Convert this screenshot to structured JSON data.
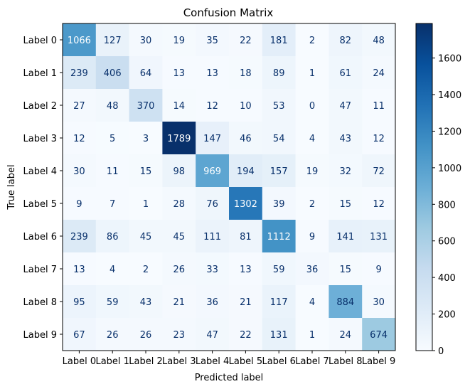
{
  "chart_data": {
    "type": "heatmap",
    "title": "Confusion Matrix",
    "xlabel": "Predicted label",
    "ylabel": "True label",
    "x_categories": [
      "Label 0",
      "Label 1",
      "Label 2",
      "Label 3",
      "Label 4",
      "Label 5",
      "Label 6",
      "Label 7",
      "Label 8",
      "Label 9"
    ],
    "y_categories": [
      "Label 0",
      "Label 1",
      "Label 2",
      "Label 3",
      "Label 4",
      "Label 5",
      "Label 6",
      "Label 7",
      "Label 8",
      "Label 9"
    ],
    "values": [
      [
        1066,
        127,
        30,
        19,
        35,
        22,
        181,
        2,
        82,
        48
      ],
      [
        239,
        406,
        64,
        13,
        13,
        18,
        89,
        1,
        61,
        24
      ],
      [
        27,
        48,
        370,
        14,
        12,
        10,
        53,
        0,
        47,
        11
      ],
      [
        12,
        5,
        3,
        1789,
        147,
        46,
        54,
        4,
        43,
        12
      ],
      [
        30,
        11,
        15,
        98,
        969,
        194,
        157,
        19,
        32,
        72
      ],
      [
        9,
        7,
        1,
        28,
        76,
        1302,
        39,
        2,
        15,
        12
      ],
      [
        239,
        86,
        45,
        45,
        111,
        81,
        1112,
        9,
        141,
        131
      ],
      [
        13,
        4,
        2,
        26,
        33,
        13,
        59,
        36,
        15,
        9
      ],
      [
        95,
        59,
        43,
        21,
        36,
        21,
        117,
        4,
        884,
        30
      ],
      [
        67,
        26,
        26,
        23,
        47,
        22,
        131,
        1,
        24,
        674
      ]
    ],
    "colormap": "Blues",
    "color_low": "#f7fbff",
    "color_high": "#08306b",
    "vmin": 0,
    "vmax": 1789,
    "colorbar_ticks": [
      0,
      200,
      400,
      600,
      800,
      1000,
      1200,
      1400,
      1600
    ]
  }
}
